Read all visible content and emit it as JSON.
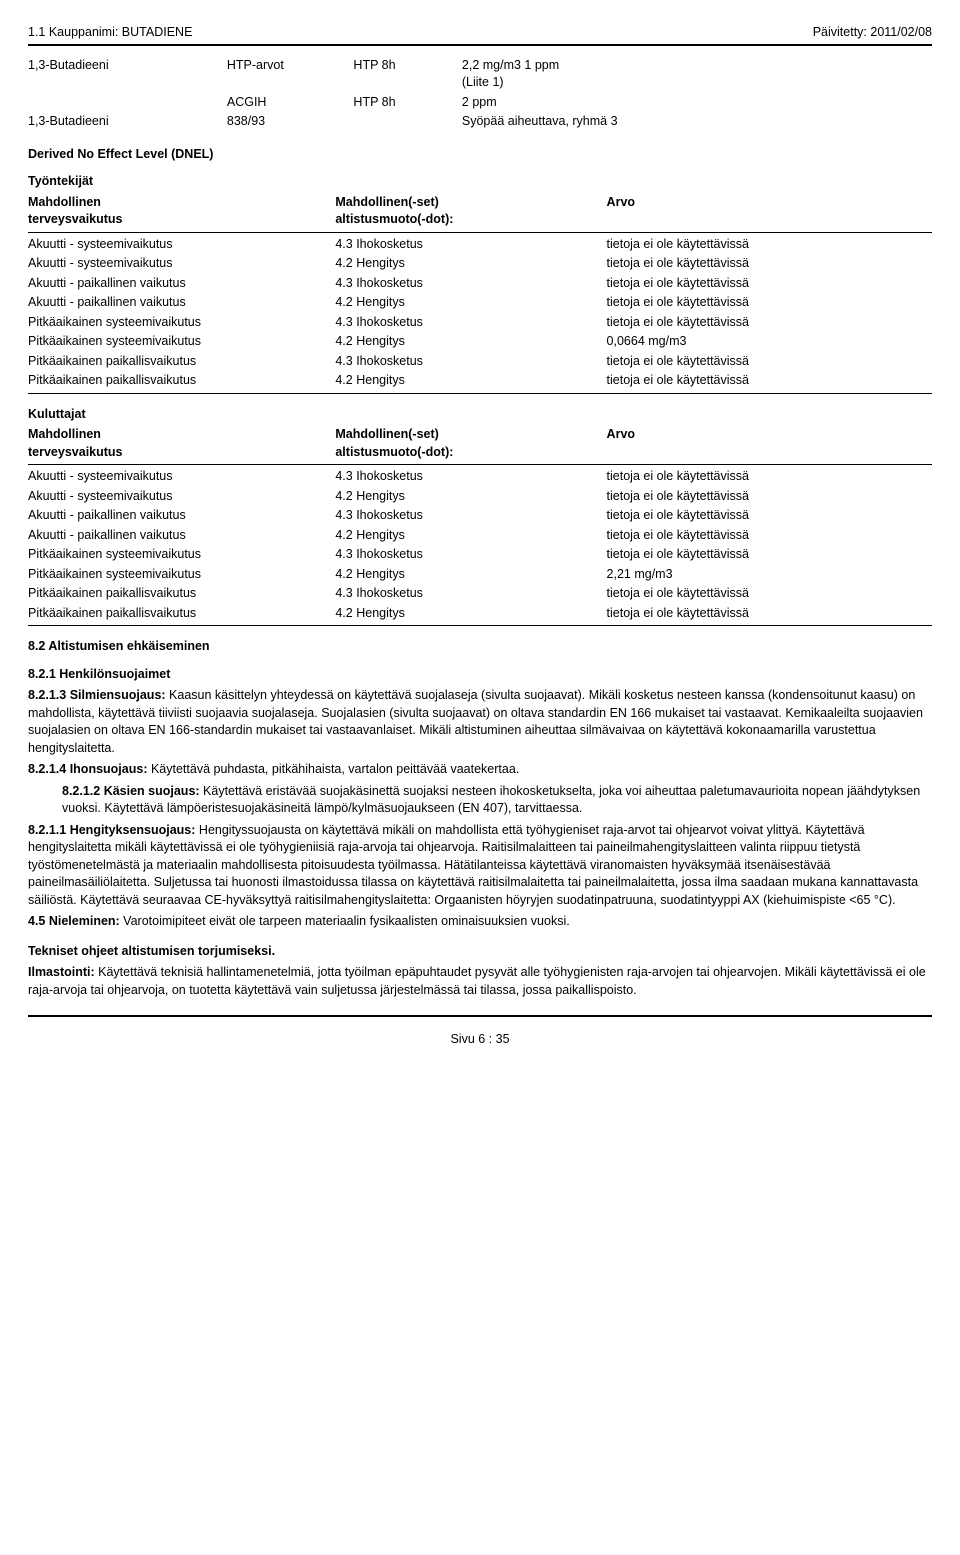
{
  "header": {
    "left": "1.1 Kauppanimi: BUTADIENE",
    "right": "Päivitetty: 2011/02/08"
  },
  "htp": {
    "row1": {
      "substance": "1,3-Butadieeni",
      "col2": "HTP-arvot",
      "col3": "HTP 8h",
      "col4a": "2,2 mg/m3  1 ppm",
      "col4b": "(Liite 1)"
    },
    "row2": {
      "substance": "",
      "col2": "ACGIH",
      "col3": "HTP 8h",
      "col4": "2 ppm"
    },
    "row3": {
      "substance": "1,3-Butadieeni",
      "col2": "838/93",
      "col3": "",
      "col4": "Syöpää aiheuttava, ryhmä 3"
    }
  },
  "dnel_title": "Derived No Effect Level (DNEL)",
  "group_workers": "Työntekijät",
  "group_consumers": "Kuluttajat",
  "dnel_head": {
    "c1a": "Mahdollinen",
    "c1b": "terveysvaikutus",
    "c2a": "Mahdollinen(-set)",
    "c2b": "altistusmuoto(-dot):",
    "c3": "Arvo"
  },
  "workers": [
    [
      "Akuutti - systeemivaikutus",
      "4.3 Ihokosketus",
      "tietoja ei ole käytettävissä"
    ],
    [
      "Akuutti - systeemivaikutus",
      "4.2 Hengitys",
      "tietoja ei ole käytettävissä"
    ],
    [
      "Akuutti - paikallinen vaikutus",
      "4.3 Ihokosketus",
      "tietoja ei ole käytettävissä"
    ],
    [
      "Akuutti - paikallinen vaikutus",
      "4.2 Hengitys",
      "tietoja ei ole käytettävissä"
    ],
    [
      "Pitkäaikainen systeemivaikutus",
      "4.3 Ihokosketus",
      "tietoja ei ole käytettävissä"
    ],
    [
      "Pitkäaikainen systeemivaikutus",
      "4.2 Hengitys",
      "0,0664 mg/m3"
    ],
    [
      "Pitkäaikainen paikallisvaikutus",
      "4.3 Ihokosketus",
      "tietoja ei ole käytettävissä"
    ],
    [
      "Pitkäaikainen paikallisvaikutus",
      "4.2 Hengitys",
      "tietoja ei ole käytettävissä"
    ]
  ],
  "consumers": [
    [
      "Akuutti - systeemivaikutus",
      "4.3 Ihokosketus",
      "tietoja ei ole käytettävissä"
    ],
    [
      "Akuutti - systeemivaikutus",
      "4.2 Hengitys",
      "tietoja ei ole käytettävissä"
    ],
    [
      "Akuutti - paikallinen vaikutus",
      "4.3 Ihokosketus",
      "tietoja ei ole käytettävissä"
    ],
    [
      "Akuutti - paikallinen vaikutus",
      "4.2 Hengitys",
      "tietoja ei ole käytettävissä"
    ],
    [
      "Pitkäaikainen systeemivaikutus",
      "4.3 Ihokosketus",
      "tietoja ei ole käytettävissä"
    ],
    [
      "Pitkäaikainen systeemivaikutus",
      "4.2 Hengitys",
      "2,21 mg/m3"
    ],
    [
      "Pitkäaikainen paikallisvaikutus",
      "4.3 Ihokosketus",
      "tietoja ei ole käytettävissä"
    ],
    [
      "Pitkäaikainen paikallisvaikutus",
      "4.2 Hengitys",
      "tietoja ei ole käytettävissä"
    ]
  ],
  "s8_2": "8.2 Altistumisen ehkäiseminen",
  "s8_2_1": "8.2.1 Henkilönsuojaimet",
  "p8213_lead": "8.2.1.3 Silmiensuojaus:",
  "p8213": " Kaasun käsittelyn yhteydessä on käytettävä suojalaseja (sivulta suojaavat). Mikäli kosketus nesteen kanssa (kondensoitunut kaasu) on mahdollista, käytettävä tiiviisti suojaavia suojalaseja.  Suojalasien (sivulta suojaavat) on oltava standardin EN 166 mukaiset tai vastaavat. Kemikaaleilta suojaavien suojalasien on oltava EN 166-standardin mukaiset tai vastaavanlaiset.  Mikäli altistuminen aiheuttaa silmävaivaa on käytettävä kokonaamarilla varustettua hengityslaitetta.",
  "p8214_lead": "8.2.1.4 Ihonsuojaus:",
  "p8214": " Käytettävä puhdasta, pitkähihaista, vartalon peittävää vaatekertaa.",
  "p8212_lead": "8.2.1.2 Käsien suojaus:",
  "p8212": " Käytettävä eristävää suojakäsinettä suojaksi nesteen ihokosketukselta, joka voi aiheuttaa paletumavaurioita nopean jäähdytyksen vuoksi. Käytettävä lämpöeristesuojakäsineitä lämpö/kylmäsuojaukseen (EN 407), tarvittaessa.",
  "p8211_lead": "8.2.1.1 Hengityksensuojaus:",
  "p8211": " Hengityssuojausta on käytettävä mikäli on mahdollista että työhygieniset raja-arvot tai ohjearvot voivat ylittyä.  Käytettävä hengityslaitetta mikäli käytettävissä ei ole työhygieniisiä raja-arvoja tai ohjearvoja.  Raitisilmalaitteen tai paineilmahengityslaitteen valinta riippuu tietystä työstömenetelmästä ja materiaalin mahdollisesta pitoisuudesta työilmassa. Hätätilanteissa käytettävä viranomaisten hyväksymää itsenäisestävää paineilmasäiliölaitetta. Suljetussa tai huonosti ilmastoidussa tilassa on käytettävä raitisilmalaitetta tai paineilmalaitetta, jossa ilma saadaan mukana kannattavasta säiliöstä.  Käytettävä seuraavaa CE-hyväksyttyä raitisilmahengityslaitetta:  Orgaanisten höyryjen suodatinpatruuna, suodatintyyppi AX (kiehuimispiste <65 °C).",
  "p45_lead": "4.5 Nieleminen:",
  "p45": " Varotoimipiteet eivät ole tarpeen materiaalin fysikaalisten ominaisuuksien vuoksi.",
  "tech_head": "Tekniset ohjeet altistumisen torjumiseksi.",
  "ilm_lead": "Ilmastointi:",
  "ilm": " Käytettävä teknisiä hallintamenetelmiä, jotta työilman epäpuhtaudet pysyvät alle työhygienisten raja-arvojen tai ohjearvojen.  Mikäli käytettävissä ei ole raja-arvoja tai ohjearvoja, on tuotetta käytettävä vain suljetussa järjestelmässä tai tilassa, jossa paikallispoisto.",
  "footer": "Sivu 6 : 35"
}
